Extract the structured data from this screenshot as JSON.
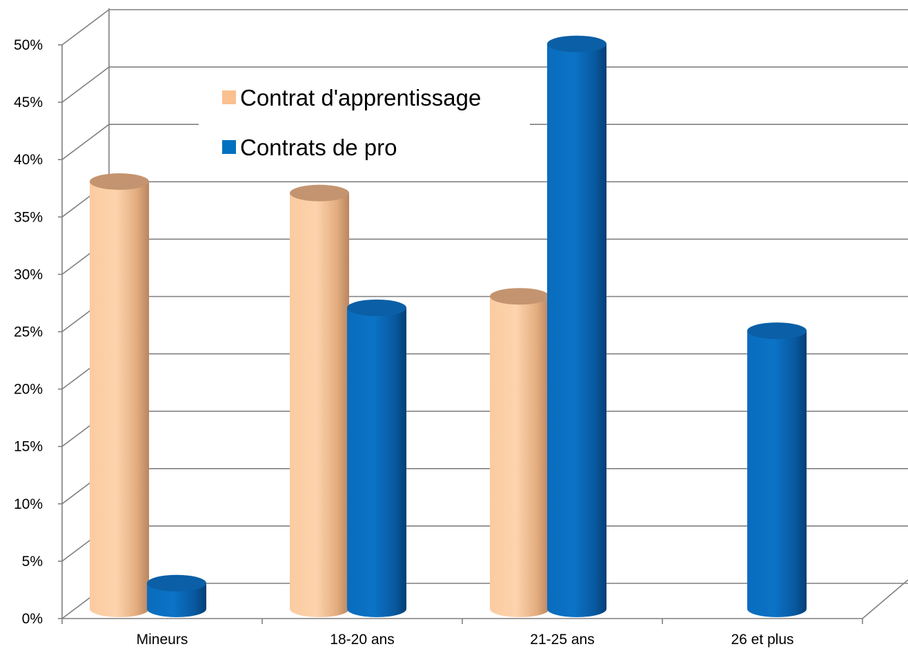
{
  "chart_data": {
    "type": "bar",
    "title": "",
    "xlabel": "",
    "ylabel": "",
    "categories": [
      "Mineurs",
      "18-20 ans",
      "21-25 ans",
      "26 et plus"
    ],
    "series": [
      {
        "name": "Contrat d'apprentissage",
        "values": [
          37,
          36,
          27,
          0
        ],
        "color": "#FAC090"
      },
      {
        "name": "Contrats de pro",
        "values": [
          2,
          26,
          49,
          24
        ],
        "color": "#0070C0"
      }
    ],
    "y_ticks": [
      "0%",
      "5%",
      "10%",
      "15%",
      "20%",
      "25%",
      "30%",
      "35%",
      "40%",
      "45%",
      "50%"
    ],
    "ylim": [
      0,
      50
    ],
    "grid": true,
    "legend_position": "top-left",
    "style": "3d-cylinder"
  }
}
